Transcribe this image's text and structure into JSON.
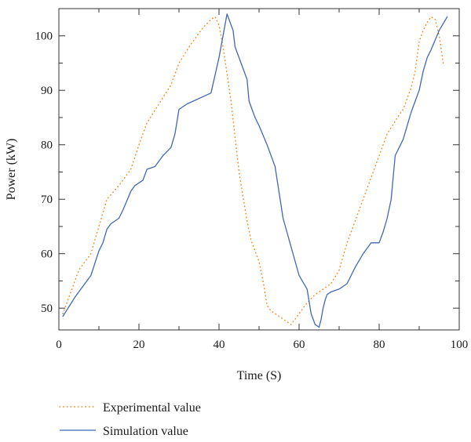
{
  "chart_data": {
    "type": "line",
    "xlabel": "Time (S)",
    "ylabel": "Power (kW)",
    "xlim": [
      0,
      100
    ],
    "ylim": [
      46,
      105
    ],
    "xticks": [
      0,
      20,
      40,
      60,
      80,
      100
    ],
    "yticks": [
      50,
      60,
      70,
      80,
      90,
      100
    ],
    "grid": false,
    "legend_position": "bottom-left",
    "series": [
      {
        "name": "Experimental value",
        "color": "#f08a24",
        "style": "dotted",
        "x": [
          1,
          3,
          5,
          8,
          10,
          12,
          15,
          18,
          20,
          22,
          25,
          28,
          30,
          33,
          36,
          38,
          39,
          40,
          41,
          43,
          45,
          47,
          48,
          50,
          51,
          52,
          53,
          55,
          57,
          58,
          60,
          62,
          64,
          66,
          68,
          70,
          72,
          75,
          78,
          80,
          82,
          85,
          86,
          88,
          89,
          90,
          91,
          92,
          93,
          94,
          95,
          96
        ],
        "y": [
          49,
          53,
          57,
          60,
          65,
          70,
          72.5,
          75.5,
          80,
          84,
          87.5,
          91,
          95,
          98.5,
          101.5,
          103,
          103.5,
          102,
          98,
          88,
          75,
          66,
          62.5,
          58.5,
          55,
          50.5,
          49.5,
          48.5,
          47.5,
          47,
          49,
          51,
          52.5,
          53.5,
          54.5,
          57,
          62,
          68,
          74,
          78,
          82,
          85.5,
          86.5,
          90.5,
          93.5,
          99,
          101,
          102.5,
          103.5,
          103,
          100,
          95
        ]
      },
      {
        "name": "Simulation value",
        "color": "#3f68b4",
        "style": "solid",
        "x": [
          1,
          4,
          8,
          10,
          11,
          12,
          13,
          15,
          16,
          18,
          19,
          21,
          22,
          24,
          25,
          26,
          28,
          29,
          30,
          32,
          35,
          38,
          40,
          42,
          43.5,
          44,
          45,
          46,
          47,
          47.5,
          48,
          49,
          50,
          52,
          54,
          56,
          60,
          62,
          63,
          64,
          65,
          65.5,
          66,
          66.5,
          67,
          68,
          70,
          72,
          74,
          76,
          78,
          80,
          81,
          82,
          83,
          84,
          86,
          88,
          90,
          91,
          92,
          93,
          95,
          97
        ],
        "y": [
          48.5,
          52,
          56,
          60.5,
          62,
          64.5,
          65.5,
          66.5,
          68,
          71.5,
          72.5,
          73.5,
          75.5,
          76,
          77,
          78,
          79.5,
          82,
          86.5,
          87.5,
          88.5,
          89.5,
          96,
          104,
          101,
          98,
          96,
          94,
          92,
          88,
          87,
          85,
          83.5,
          80,
          76,
          66.5,
          56,
          53.5,
          49,
          47,
          46.5,
          48,
          50,
          51.5,
          52.5,
          53,
          53.5,
          54.5,
          57.5,
          60,
          62,
          62,
          64,
          66.5,
          70,
          78,
          81,
          86,
          90,
          93.5,
          96,
          97.5,
          101,
          103.5
        ]
      }
    ]
  }
}
